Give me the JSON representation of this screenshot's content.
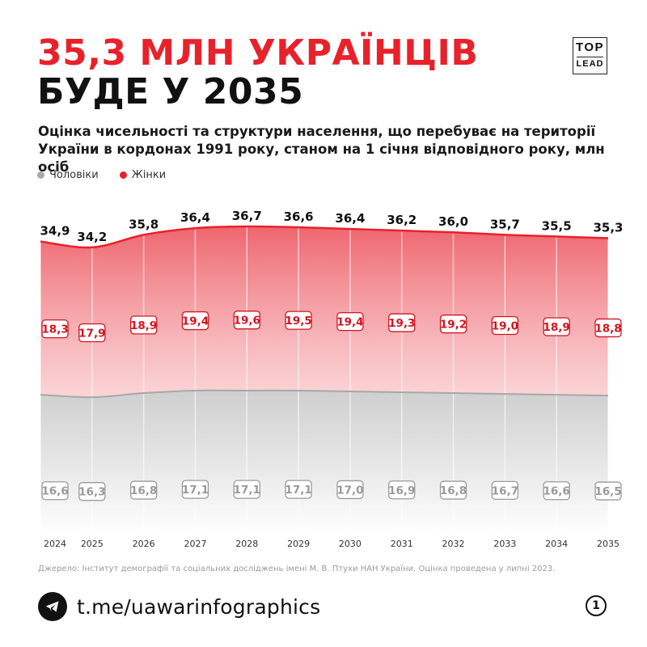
{
  "header": {
    "title_line1": "35,3 МЛН УКРАЇНЦІВ",
    "title_line2": "БУДЕ У 2035",
    "subtitle": "Оцінка чисельності та структури населення, що перебуває на території України в кордонах 1991 року, станом на 1 січня відповідного року, млн осіб"
  },
  "logo": {
    "top": "TOP",
    "bottom": "LEAD"
  },
  "legend": {
    "men": "Чоловіки",
    "women": "Жінки"
  },
  "colors": {
    "red": "#e8212b",
    "grey": "#a8a8a8",
    "dark": "#111111"
  },
  "chart_data": {
    "type": "area",
    "stacked": true,
    "categories": [
      "2024",
      "2025",
      "2026",
      "2027",
      "2028",
      "2029",
      "2030",
      "2031",
      "2032",
      "2033",
      "2034",
      "2035"
    ],
    "totals": [
      "34,9",
      "34,2",
      "35,8",
      "36,4",
      "36,7",
      "36,6",
      "36,4",
      "36,2",
      "36,0",
      "35,7",
      "35,5",
      "35,3"
    ],
    "series": [
      {
        "name": "Чоловіки",
        "values": [
          16.6,
          16.3,
          16.8,
          17.1,
          17.1,
          17.1,
          17.0,
          16.9,
          16.8,
          16.7,
          16.6,
          16.5
        ],
        "labels": [
          "16,6",
          "16,3",
          "16,8",
          "17,1",
          "17,1",
          "17,1",
          "17,0",
          "16,9",
          "16,8",
          "16,7",
          "16,6",
          "16,5"
        ]
      },
      {
        "name": "Жінки",
        "values": [
          18.3,
          17.9,
          18.9,
          19.4,
          19.6,
          19.5,
          19.4,
          19.3,
          19.2,
          19.0,
          18.9,
          18.8
        ],
        "labels": [
          "18,3",
          "17,9",
          "18,9",
          "19,4",
          "19,6",
          "19,5",
          "19,4",
          "19,3",
          "19,2",
          "19,0",
          "18,9",
          "18,8"
        ]
      }
    ],
    "ylim": [
      0,
      36.7
    ],
    "grid": false
  },
  "source": "Джерело: Інститут демографії та соціальних досліджень імені М. В. Птухи НАН України. Оцінка проведена у липні 2023.",
  "footer": {
    "link": "t.me/uawarinfographics",
    "page": "1",
    "icon": "telegram-icon"
  }
}
